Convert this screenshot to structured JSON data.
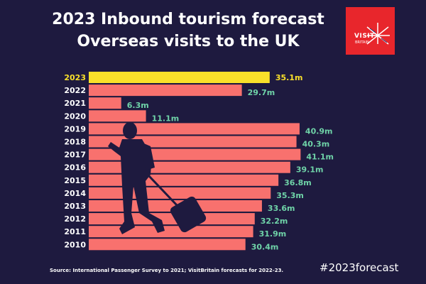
{
  "title_line1": "2023 Inbound tourism forecast",
  "title_line2": "Overseas visits to the UK",
  "logo": {
    "text1": "VISIT",
    "text2": "BRITAIN"
  },
  "source": "Source: International Passenger Survey to 2021; VisitBritain forecasts for 2022-23.",
  "hashtag": "#2023forecast",
  "colors": {
    "background": "#1e1a3f",
    "bar": "#f8716e",
    "highlight": "#f9e02a",
    "label": "#6fd3a8",
    "highlight_label": "#f9e02a"
  },
  "chart_data": {
    "type": "bar",
    "orientation": "horizontal",
    "title": "Overseas visits to the UK",
    "unit": "millions",
    "categories": [
      "2023",
      "2022",
      "2021",
      "2020",
      "2019",
      "2018",
      "2017",
      "2016",
      "2015",
      "2014",
      "2013",
      "2012",
      "2011",
      "2010"
    ],
    "values": [
      35.1,
      29.7,
      6.3,
      11.1,
      40.9,
      40.3,
      41.1,
      39.1,
      36.8,
      35.3,
      33.6,
      32.2,
      31.9,
      30.4
    ],
    "labels": [
      "35.1m",
      "29.7m",
      "6.3m",
      "11.1m",
      "40.9m",
      "40.3m",
      "41.1m",
      "39.1m",
      "36.8m",
      "35.3m",
      "33.6m",
      "32.2m",
      "31.9m",
      "30.4m"
    ],
    "highlight": "2023",
    "xlim": [
      0,
      42
    ]
  }
}
